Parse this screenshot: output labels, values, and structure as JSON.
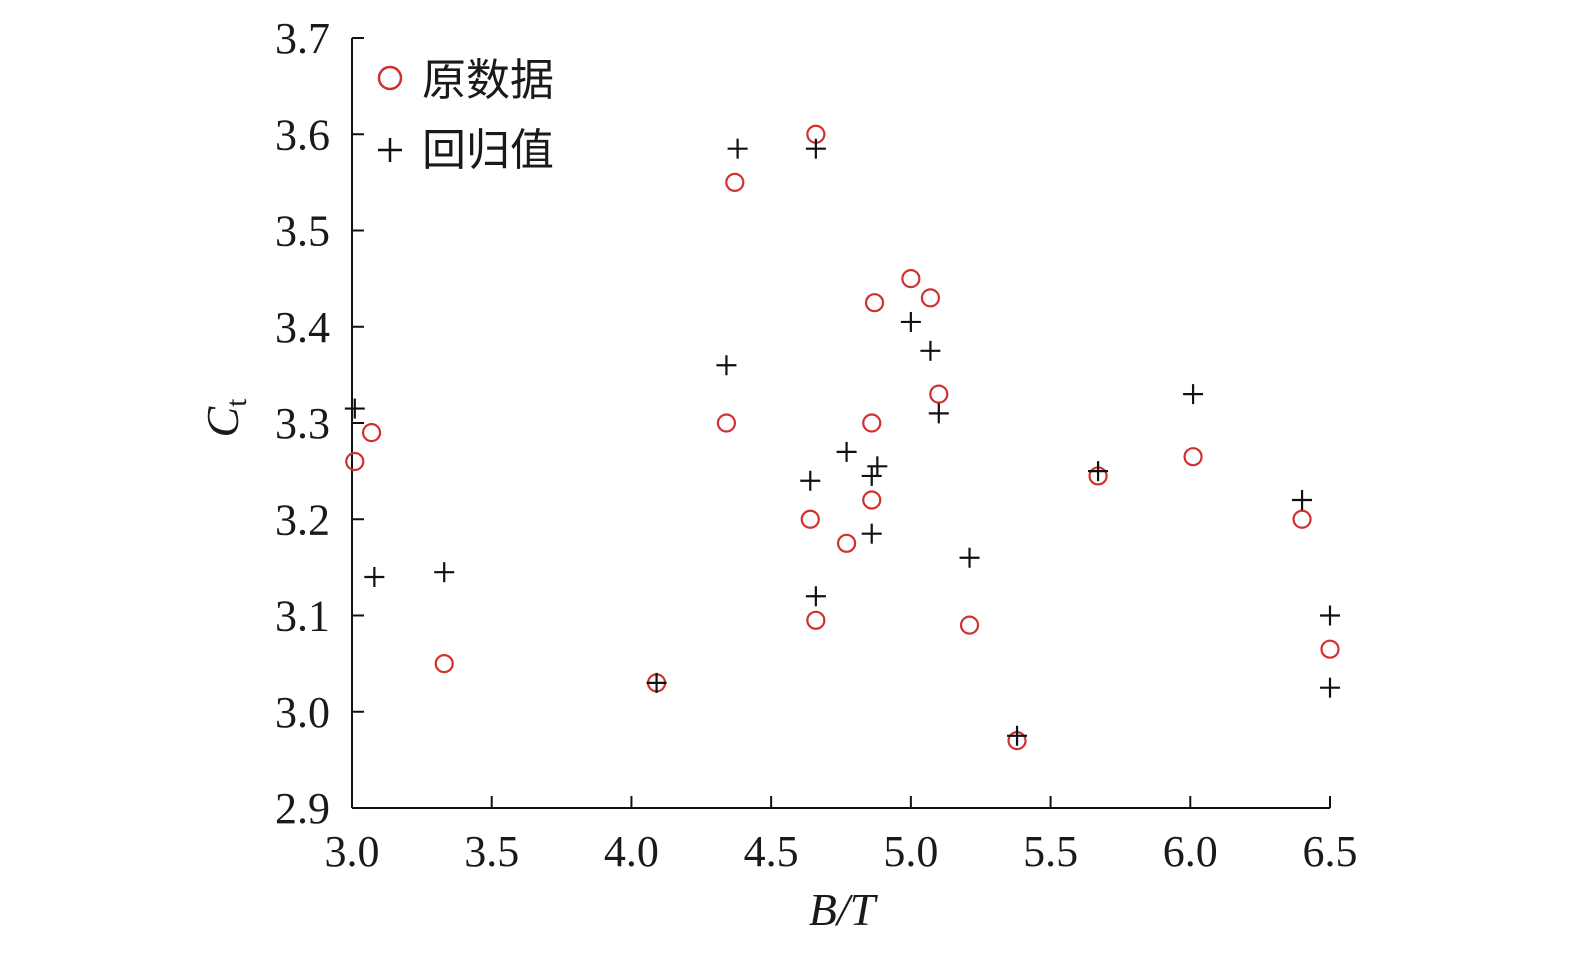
{
  "chart_data": {
    "type": "scatter",
    "title": "",
    "xlabel": {
      "main": "B/T"
    },
    "ylabel": {
      "main": "C",
      "sub": "t"
    },
    "xlim": [
      3.0,
      6.5
    ],
    "ylim": [
      2.9,
      3.7
    ],
    "x_ticks": [
      "3.0",
      "3.5",
      "4.0",
      "4.5",
      "5.0",
      "5.5",
      "6.0",
      "6.5"
    ],
    "y_ticks": [
      "2.9",
      "3.0",
      "3.1",
      "3.2",
      "3.3",
      "3.4",
      "3.5",
      "3.6",
      "3.7"
    ],
    "grid": false,
    "legend_position": "top-left",
    "series": [
      {
        "name": "原数据",
        "marker": "circle",
        "color": "#d03030",
        "points": [
          [
            3.01,
            3.26
          ],
          [
            3.07,
            3.29
          ],
          [
            3.33,
            3.05
          ],
          [
            4.09,
            3.03
          ],
          [
            4.34,
            3.3
          ],
          [
            4.37,
            3.55
          ],
          [
            4.64,
            3.2
          ],
          [
            4.66,
            3.6
          ],
          [
            4.66,
            3.095
          ],
          [
            4.77,
            3.175
          ],
          [
            4.86,
            3.3
          ],
          [
            4.86,
            3.22
          ],
          [
            4.87,
            3.425
          ],
          [
            5.0,
            3.45
          ],
          [
            5.07,
            3.43
          ],
          [
            5.1,
            3.33
          ],
          [
            5.21,
            3.09
          ],
          [
            5.38,
            2.97
          ],
          [
            5.67,
            3.245
          ],
          [
            6.01,
            3.265
          ],
          [
            6.4,
            3.2
          ],
          [
            6.5,
            3.065
          ]
        ]
      },
      {
        "name": "回归值",
        "marker": "plus",
        "color": "#111111",
        "points": [
          [
            3.01,
            3.315
          ],
          [
            3.08,
            3.14
          ],
          [
            3.33,
            3.145
          ],
          [
            4.09,
            3.03
          ],
          [
            4.34,
            3.36
          ],
          [
            4.38,
            3.585
          ],
          [
            4.64,
            3.24
          ],
          [
            4.66,
            3.585
          ],
          [
            4.66,
            3.12
          ],
          [
            4.77,
            3.27
          ],
          [
            4.86,
            3.245
          ],
          [
            4.86,
            3.185
          ],
          [
            4.88,
            3.255
          ],
          [
            5.0,
            3.405
          ],
          [
            5.07,
            3.375
          ],
          [
            5.1,
            3.31
          ],
          [
            5.21,
            3.16
          ],
          [
            5.38,
            2.975
          ],
          [
            5.67,
            3.25
          ],
          [
            6.01,
            3.33
          ],
          [
            6.4,
            3.22
          ],
          [
            6.5,
            3.1
          ],
          [
            6.5,
            3.025
          ]
        ]
      }
    ]
  }
}
